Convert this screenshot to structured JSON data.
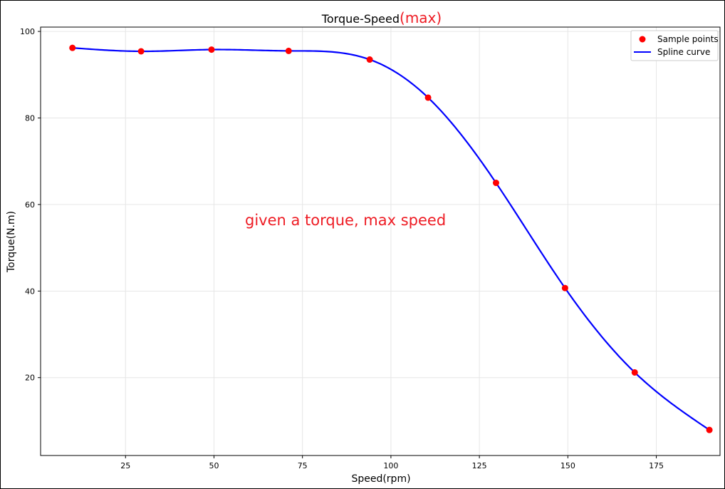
{
  "colors": {
    "points": "#ff0000",
    "curve": "#0000ff",
    "annotation": "#ee1c24",
    "grid": "#e6e6e6"
  },
  "chart_data": {
    "type": "line",
    "title": "Torque-Speed",
    "title_suffix": "(max)",
    "xlabel": "Speed(rpm)",
    "ylabel": "Torque(N.m)",
    "xlim": [
      1,
      193
    ],
    "ylim": [
      2,
      101
    ],
    "xticks": [
      25,
      50,
      75,
      100,
      125,
      150,
      175
    ],
    "yticks": [
      20,
      40,
      60,
      80,
      100
    ],
    "grid": true,
    "legend_position": "top-right",
    "annotation": "given a torque, max speed",
    "series": [
      {
        "name": "Sample points",
        "kind": "scatter",
        "x": [
          10,
          29.4,
          49.3,
          71.1,
          94,
          110.5,
          129.7,
          149.2,
          168.9,
          190
        ],
        "y": [
          96.2,
          95.4,
          95.8,
          95.5,
          93.5,
          84.7,
          65,
          40.7,
          21.2,
          7.9
        ]
      },
      {
        "name": "Spline curve",
        "kind": "line"
      }
    ]
  }
}
